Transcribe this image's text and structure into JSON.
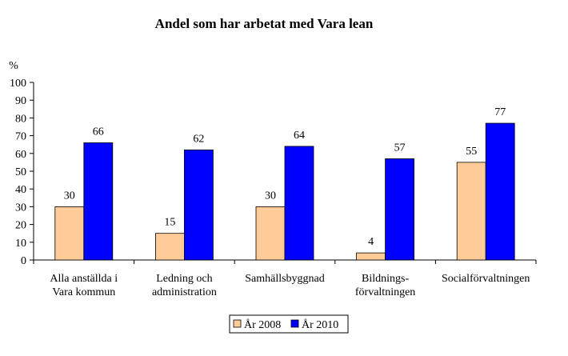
{
  "chart_data": {
    "type": "bar",
    "title": "Andel som har arbetat med Vara lean",
    "ylabel": "%",
    "xlabel": "",
    "ylim": [
      0,
      100
    ],
    "yticks": [
      "0",
      "10",
      "20",
      "30",
      "40",
      "50",
      "60",
      "70",
      "80",
      "90",
      "100"
    ],
    "categories": [
      [
        "Alla anställda i",
        "Vara kommun"
      ],
      [
        "Ledning och",
        "administration"
      ],
      [
        "Samhällsbyggnad"
      ],
      [
        "Bildnings-",
        "förvaltningen"
      ],
      [
        "Socialförvaltningen"
      ]
    ],
    "series": [
      {
        "name": "År 2008",
        "values": [
          30,
          15,
          30,
          4,
          55
        ],
        "color": "#FFCC99"
      },
      {
        "name": "År 2010",
        "values": [
          66,
          62,
          64,
          57,
          77
        ],
        "color": "#0000FF"
      }
    ],
    "grid": false,
    "legend": "bottom"
  }
}
